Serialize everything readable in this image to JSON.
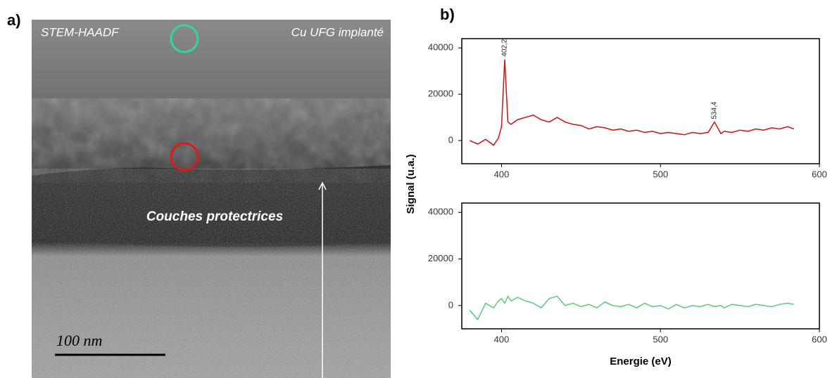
{
  "image": {
    "label": "a)",
    "technique": "STEM-HAADF",
    "sample": "Cu UFG implanté",
    "layer_label": "Couches protectrices",
    "scale_bar": "100 nm"
  },
  "panel_label": "b)",
  "shared_axes": {
    "xlabel": "Energie (eV)",
    "ylabel": "Signal (u.a.)"
  },
  "chart_data": [
    {
      "type": "line",
      "xlim": [
        375,
        600
      ],
      "ylim": [
        -10000,
        44000
      ],
      "xticks": [
        400,
        500,
        600
      ],
      "yticks": [
        0,
        20000,
        40000
      ],
      "x": [
        380,
        385,
        390,
        395,
        398,
        400,
        402,
        404,
        406,
        410,
        415,
        420,
        425,
        430,
        435,
        440,
        445,
        450,
        455,
        460,
        465,
        470,
        475,
        480,
        485,
        490,
        495,
        500,
        505,
        510,
        515,
        520,
        525,
        530,
        534,
        538,
        540,
        545,
        550,
        555,
        560,
        565,
        570,
        575,
        580,
        584
      ],
      "series": [
        {
          "color": "#cc1111",
          "values": [
            0,
            -1500,
            500,
            -2000,
            1000,
            6000,
            35000,
            8000,
            7000,
            9000,
            10000,
            11000,
            9000,
            8000,
            10000,
            8000,
            7000,
            6500,
            5000,
            6000,
            5500,
            4500,
            5000,
            4000,
            4500,
            3500,
            4000,
            3000,
            3500,
            3000,
            2500,
            3500,
            3000,
            3500,
            8000,
            3000,
            4000,
            3500,
            4500,
            4000,
            5000,
            4500,
            5500,
            5000,
            6000,
            5000
          ]
        }
      ],
      "annotations": [
        {
          "text": "402,2",
          "x": 402,
          "y": 35000
        },
        {
          "text": "534,4",
          "x": 534,
          "y": 8000
        }
      ]
    },
    {
      "type": "line",
      "xlim": [
        375,
        600
      ],
      "ylim": [
        -10000,
        44000
      ],
      "xticks": [
        400,
        500,
        600
      ],
      "yticks": [
        0,
        20000,
        40000
      ],
      "x": [
        380,
        385,
        390,
        395,
        398,
        400,
        402,
        404,
        406,
        410,
        415,
        420,
        425,
        430,
        435,
        440,
        445,
        450,
        455,
        460,
        465,
        470,
        475,
        480,
        485,
        490,
        495,
        500,
        505,
        510,
        515,
        520,
        525,
        530,
        534,
        538,
        540,
        545,
        550,
        555,
        560,
        565,
        570,
        575,
        580,
        584
      ],
      "series": [
        {
          "color": "#5cc77f",
          "values": [
            -2000,
            -6000,
            1000,
            -1000,
            2000,
            3000,
            1000,
            4000,
            2000,
            3500,
            2000,
            1000,
            -1000,
            3000,
            4000,
            0,
            1000,
            -500,
            500,
            -1000,
            1500,
            0,
            -500,
            500,
            -1000,
            1000,
            -500,
            0,
            -1500,
            500,
            -1000,
            0,
            -500,
            500,
            -500,
            0,
            -1000,
            500,
            0,
            -500,
            500,
            0,
            -500,
            500,
            1000,
            500
          ]
        }
      ]
    }
  ]
}
